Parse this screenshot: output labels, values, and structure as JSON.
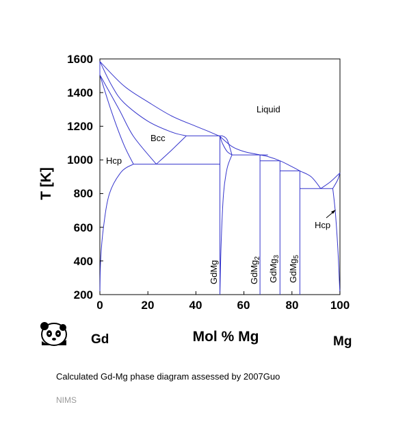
{
  "chart_data": {
    "type": "phase-diagram",
    "title": "",
    "ylabel": "T [K]",
    "xlabel": "Mol % Mg",
    "xlim": [
      0,
      100
    ],
    "ylim": [
      200,
      1600
    ],
    "x_ticks": [
      "0",
      "20",
      "40",
      "60",
      "80",
      "100"
    ],
    "y_ticks": [
      "200",
      "400",
      "600",
      "800",
      "1000",
      "1200",
      "1400",
      "1600"
    ],
    "element_left": "Gd",
    "element_right": "Mg",
    "line_color": "#3333cc",
    "region_labels": {
      "liquid": "Liquid",
      "bcc": "Bcc",
      "hcp_left": "Hcp",
      "hcp_right": "Hcp"
    },
    "compound_labels": {
      "gdmg": "GdMg",
      "gdmg2_base": "GdMg",
      "gdmg2_sub": "2",
      "gdmg3_base": "GdMg",
      "gdmg3_sub": "3",
      "gdmg5_base": "GdMg",
      "gdmg5_sub": "5"
    },
    "curves": [
      {
        "name": "liquidus-gd-side",
        "points": [
          [
            0,
            1585
          ],
          [
            10,
            1440
          ],
          [
            20,
            1345
          ],
          [
            30,
            1260
          ],
          [
            40,
            1200
          ],
          [
            46,
            1165
          ],
          [
            50,
            1140
          ]
        ]
      },
      {
        "name": "liquid-bcc-boundary",
        "points": [
          [
            0,
            1585
          ],
          [
            5,
            1440
          ],
          [
            10,
            1340
          ],
          [
            20,
            1230
          ],
          [
            30,
            1165
          ],
          [
            36,
            1143
          ]
        ]
      },
      {
        "name": "bcc-left-outer",
        "points": [
          [
            0,
            1585
          ],
          [
            0,
            1505
          ]
        ]
      },
      {
        "name": "bcc-hcp-left-a",
        "points": [
          [
            0,
            1505
          ],
          [
            8,
            1300
          ],
          [
            14,
            1140
          ],
          [
            23.5,
            975
          ]
        ]
      },
      {
        "name": "bcc-hcp-left-b",
        "points": [
          [
            0,
            1505
          ],
          [
            5,
            1280
          ],
          [
            10,
            1090
          ],
          [
            14,
            975
          ]
        ]
      },
      {
        "name": "bcc-right",
        "points": [
          [
            23.5,
            975
          ],
          [
            30,
            1060
          ],
          [
            36,
            1143
          ]
        ]
      },
      {
        "name": "eutectoid-973",
        "points": [
          [
            14,
            975
          ],
          [
            50,
            975
          ]
        ]
      },
      {
        "name": "peritectic-1143",
        "points": [
          [
            36,
            1143
          ],
          [
            51,
            1143
          ]
        ]
      },
      {
        "name": "hcp-solvus",
        "points": [
          [
            0,
            200
          ],
          [
            0.3,
            400
          ],
          [
            1.5,
            600
          ],
          [
            4,
            800
          ],
          [
            9,
            930
          ],
          [
            14,
            975
          ]
        ]
      },
      {
        "name": "gdmg-left",
        "points": [
          [
            50,
            200
          ],
          [
            50,
            975
          ],
          [
            50,
            1143
          ]
        ]
      },
      {
        "name": "gdmg-dome",
        "points": [
          [
            50,
            1143
          ],
          [
            51,
            1100
          ],
          [
            53,
            1050
          ],
          [
            55,
            1030
          ]
        ]
      },
      {
        "name": "gdmg-right",
        "points": [
          [
            50,
            200
          ],
          [
            50.5,
            500
          ],
          [
            51.5,
            800
          ],
          [
            53,
            950
          ],
          [
            55,
            1030
          ]
        ]
      },
      {
        "name": "liquidus-mid",
        "points": [
          [
            50,
            1140
          ],
          [
            55,
            1080
          ],
          [
            60,
            1050
          ],
          [
            66.7,
            1030
          ],
          [
            70,
            1020
          ],
          [
            75,
            995
          ],
          [
            80,
            960
          ],
          [
            83.3,
            935
          ],
          [
            88,
            900
          ],
          [
            92,
            830
          ]
        ]
      },
      {
        "name": "gdmg-dome-liquid",
        "points": [
          [
            51,
            1143
          ],
          [
            53,
            1120
          ],
          [
            55,
            1030
          ]
        ]
      },
      {
        "name": "peritectic-1030",
        "points": [
          [
            55,
            1030
          ],
          [
            70,
            1030
          ]
        ]
      },
      {
        "name": "gdmg2",
        "points": [
          [
            66.7,
            200
          ],
          [
            66.7,
            1030
          ]
        ]
      },
      {
        "name": "peritectic-995",
        "points": [
          [
            66.7,
            995
          ],
          [
            75,
            995
          ]
        ]
      },
      {
        "name": "gdmg3",
        "points": [
          [
            75,
            200
          ],
          [
            75,
            995
          ]
        ]
      },
      {
        "name": "peritectic-935",
        "points": [
          [
            75,
            935
          ],
          [
            83.3,
            935
          ]
        ]
      },
      {
        "name": "gdmg5",
        "points": [
          [
            83.3,
            200
          ],
          [
            83.3,
            935
          ]
        ]
      },
      {
        "name": "eutectic-830",
        "points": [
          [
            83.3,
            830
          ],
          [
            97,
            830
          ]
        ]
      },
      {
        "name": "liquidus-mg-side",
        "points": [
          [
            92,
            830
          ],
          [
            96,
            870
          ],
          [
            100,
            923
          ]
        ]
      },
      {
        "name": "mg-solidus",
        "points": [
          [
            97,
            830
          ],
          [
            99,
            880
          ],
          [
            100,
            923
          ]
        ]
      },
      {
        "name": "mg-solvus",
        "points": [
          [
            97,
            830
          ],
          [
            98,
            700
          ],
          [
            99,
            500
          ],
          [
            99.7,
            300
          ],
          [
            100,
            200
          ]
        ]
      }
    ]
  },
  "caption": "Calculated Gd-Mg phase diagram assessed by 2007Guo",
  "source": "NIMS",
  "logo_icon": "panda-icon"
}
